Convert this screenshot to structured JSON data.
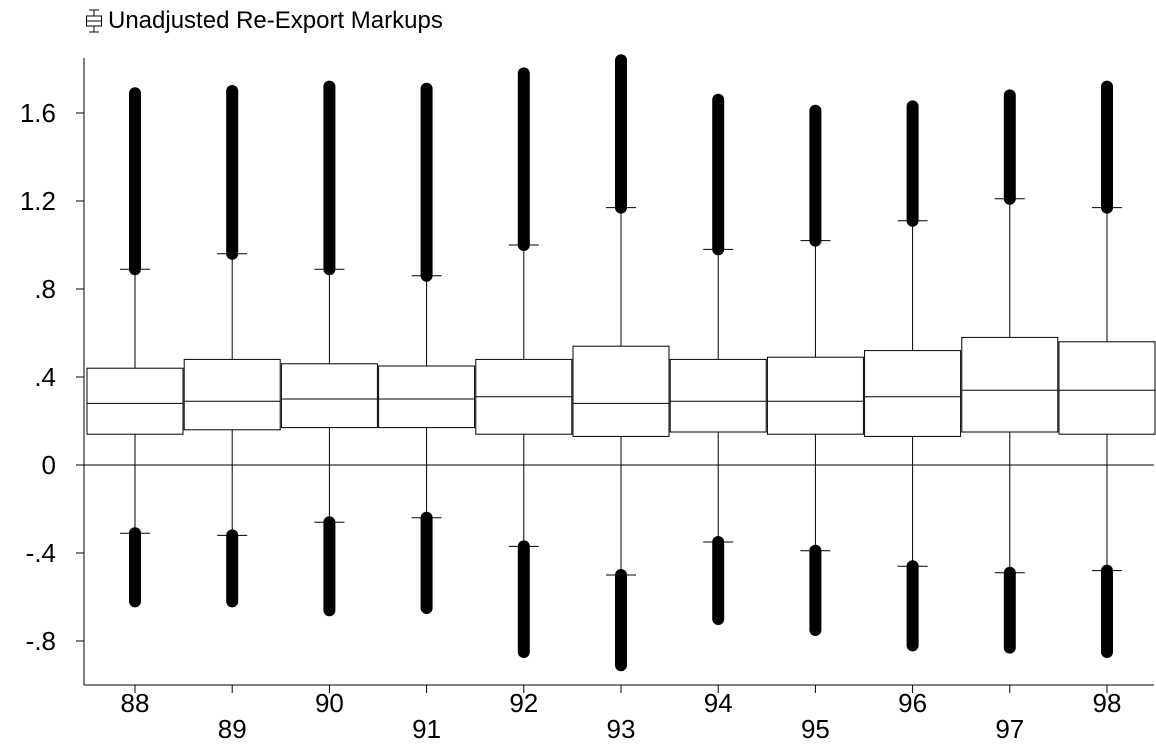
{
  "legend": {
    "label": "Unadjusted Re-Export Markups",
    "icon": "boxplot-icon",
    "placement": "top-left"
  },
  "chart_data": {
    "type": "boxplot",
    "title": "",
    "xlabel": "",
    "ylabel": "",
    "categories": [
      "88",
      "89",
      "90",
      "91",
      "92",
      "93",
      "94",
      "95",
      "96",
      "97",
      "98"
    ],
    "series": [
      {
        "name": "Unadjusted Re-Export Markups",
        "boxes": [
          {
            "min": -0.62,
            "lower_whisker": -0.31,
            "q1": 0.14,
            "median": 0.28,
            "q3": 0.44,
            "upper_whisker": 0.89,
            "max": 1.69
          },
          {
            "min": -0.62,
            "lower_whisker": -0.32,
            "q1": 0.16,
            "median": 0.29,
            "q3": 0.48,
            "upper_whisker": 0.96,
            "max": 1.7
          },
          {
            "min": -0.66,
            "lower_whisker": -0.26,
            "q1": 0.17,
            "median": 0.3,
            "q3": 0.46,
            "upper_whisker": 0.89,
            "max": 1.72
          },
          {
            "min": -0.65,
            "lower_whisker": -0.24,
            "q1": 0.17,
            "median": 0.3,
            "q3": 0.45,
            "upper_whisker": 0.86,
            "max": 1.71
          },
          {
            "min": -0.85,
            "lower_whisker": -0.37,
            "q1": 0.14,
            "median": 0.31,
            "q3": 0.48,
            "upper_whisker": 1.0,
            "max": 1.78
          },
          {
            "min": -0.91,
            "lower_whisker": -0.5,
            "q1": 0.13,
            "median": 0.28,
            "q3": 0.54,
            "upper_whisker": 1.17,
            "max": 1.84
          },
          {
            "min": -0.7,
            "lower_whisker": -0.35,
            "q1": 0.15,
            "median": 0.29,
            "q3": 0.48,
            "upper_whisker": 0.98,
            "max": 1.66
          },
          {
            "min": -0.75,
            "lower_whisker": -0.39,
            "q1": 0.14,
            "median": 0.29,
            "q3": 0.49,
            "upper_whisker": 1.02,
            "max": 1.61
          },
          {
            "min": -0.82,
            "lower_whisker": -0.46,
            "q1": 0.13,
            "median": 0.31,
            "q3": 0.52,
            "upper_whisker": 1.11,
            "max": 1.63
          },
          {
            "min": -0.83,
            "lower_whisker": -0.49,
            "q1": 0.15,
            "median": 0.34,
            "q3": 0.58,
            "upper_whisker": 1.21,
            "max": 1.68
          },
          {
            "min": -0.85,
            "lower_whisker": -0.48,
            "q1": 0.14,
            "median": 0.34,
            "q3": 0.56,
            "upper_whisker": 1.17,
            "max": 1.72
          }
        ]
      }
    ],
    "ylim": [
      -1.0,
      1.85
    ],
    "yticks": [
      -0.8,
      -0.4,
      0,
      0.4,
      0.8,
      1.2,
      1.6
    ],
    "ytick_labels": [
      "-.8",
      "-.4",
      "0",
      ".4",
      ".8",
      "1.2",
      "1.6"
    ],
    "reference_line": 0,
    "grid": false,
    "outlier_marker": "filled-circle",
    "colors": {
      "box_fill": "#ffffff",
      "line": "#000000",
      "outlier": "#000000"
    }
  }
}
